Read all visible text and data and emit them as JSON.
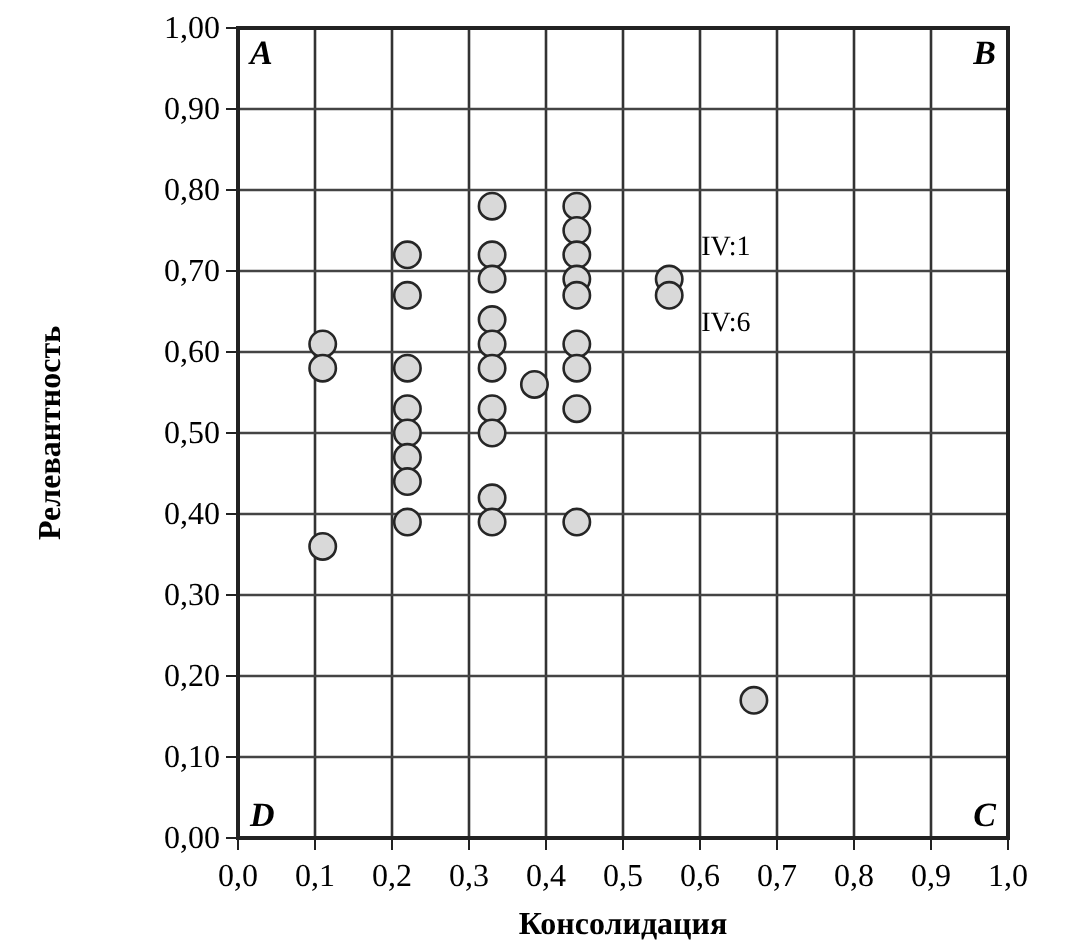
{
  "chart_data": {
    "type": "scatter",
    "xlabel": "Консолидация",
    "ylabel": "Релевантность",
    "xlim": [
      0,
      1
    ],
    "ylim": [
      0,
      1
    ],
    "xticks": [
      {
        "value": 0,
        "label": "0,0"
      },
      {
        "value": 0.1,
        "label": "0,1"
      },
      {
        "value": 0.2,
        "label": "0,2"
      },
      {
        "value": 0.3,
        "label": "0,3"
      },
      {
        "value": 0.4,
        "label": "0,4"
      },
      {
        "value": 0.5,
        "label": "0,5"
      },
      {
        "value": 0.6,
        "label": "0,6"
      },
      {
        "value": 0.7,
        "label": "0,7"
      },
      {
        "value": 0.8,
        "label": "0,8"
      },
      {
        "value": 0.9,
        "label": "0,9"
      },
      {
        "value": 1,
        "label": "1,0"
      }
    ],
    "yticks": [
      {
        "value": 0,
        "label": "0,00"
      },
      {
        "value": 0.1,
        "label": "0,10"
      },
      {
        "value": 0.2,
        "label": "0,20"
      },
      {
        "value": 0.3,
        "label": "0,30"
      },
      {
        "value": 0.4,
        "label": "0,40"
      },
      {
        "value": 0.5,
        "label": "0,50"
      },
      {
        "value": 0.6,
        "label": "0,60"
      },
      {
        "value": 0.7,
        "label": "0,70"
      },
      {
        "value": 0.8,
        "label": "0,80"
      },
      {
        "value": 0.9,
        "label": "0,90"
      },
      {
        "value": 1,
        "label": "1,00"
      }
    ],
    "grid": true,
    "marker": "circle",
    "series": [
      {
        "color": "#d9d9d9",
        "x": [
          0.11,
          0.11,
          0.11,
          0.22,
          0.22,
          0.22,
          0.22,
          0.22,
          0.22,
          0.22,
          0.22,
          0.33,
          0.33,
          0.33,
          0.33,
          0.33,
          0.33,
          0.33,
          0.33,
          0.33,
          0.33,
          0.385,
          0.44,
          0.44,
          0.44,
          0.44,
          0.44,
          0.44,
          0.44,
          0.44,
          0.44,
          0.56,
          0.56,
          0.67
        ],
        "values": [
          0.61,
          0.58,
          0.36,
          0.72,
          0.67,
          0.58,
          0.53,
          0.5,
          0.47,
          0.44,
          0.39,
          0.78,
          0.72,
          0.69,
          0.64,
          0.61,
          0.58,
          0.53,
          0.5,
          0.42,
          0.39,
          0.56,
          0.78,
          0.75,
          0.72,
          0.69,
          0.67,
          0.61,
          0.58,
          0.53,
          0.39,
          0.69,
          0.67,
          0.17
        ]
      }
    ],
    "annotations": [
      "A",
      "B",
      "D",
      "C",
      {
        "text": "IV:1",
        "x": 0.56,
        "y": 0.69
      },
      {
        "text": "IV:6",
        "x": 0.56,
        "y": 0.67
      }
    ]
  }
}
